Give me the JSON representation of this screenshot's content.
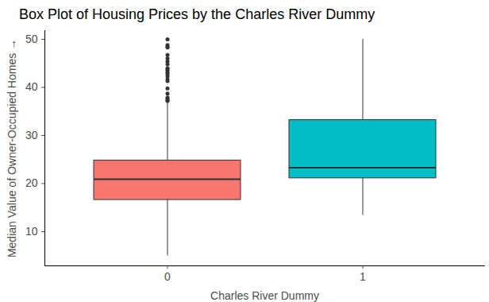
{
  "chart_data": {
    "type": "box",
    "title": "Box Plot of Housing Prices by the Charles River Dummy",
    "x_label": "Charles River Dummy",
    "y_label": "Median Value of Owner-Occupied Homes",
    "categories": [
      "0",
      "1"
    ],
    "colors": [
      "#F8766D",
      "#00BFC4"
    ],
    "whisker_low": [
      5.0,
      13.4
    ],
    "q1": [
      16.6,
      21.1
    ],
    "median": [
      20.9,
      23.3
    ],
    "q3": [
      24.8,
      33.2
    ],
    "whisker_high": [
      37.0,
      50.0
    ],
    "outliers": [
      [
        37.2,
        37.3,
        37.6,
        37.9,
        38.7,
        39.8,
        41.3,
        41.7,
        42.3,
        42.8,
        43.1,
        43.5,
        43.8,
        44.0,
        44.8,
        45.4,
        46.0,
        46.7,
        48.3,
        48.5,
        48.8,
        50.0
      ],
      []
    ],
    "ylim": [
      2.9,
      51.8
    ],
    "yticks": [
      10,
      20,
      30,
      40,
      50
    ]
  }
}
